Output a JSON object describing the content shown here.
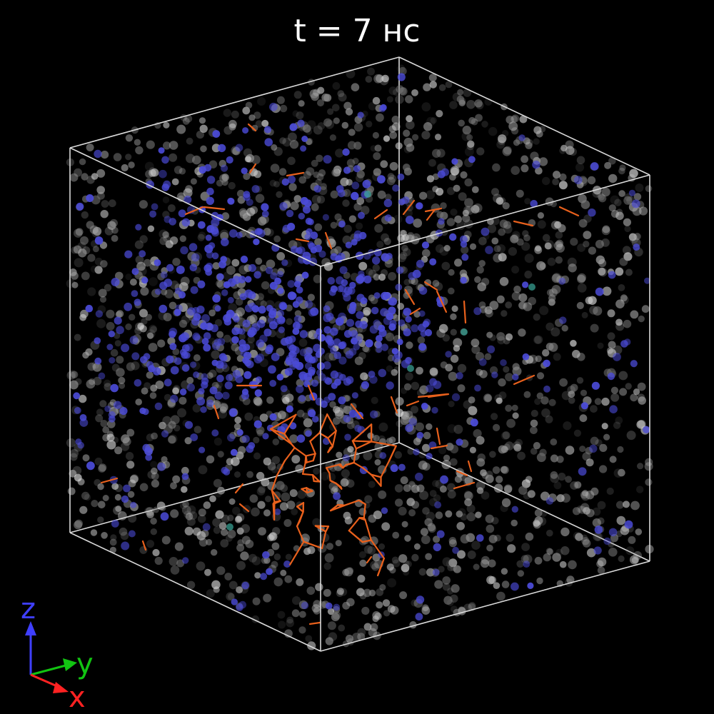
{
  "title": "t = 7 нс",
  "axes": {
    "x_label": "x",
    "y_label": "y",
    "z_label": "z"
  },
  "colors": {
    "background": "#000000",
    "box_edges": "#d9d9d9",
    "gray_atoms": "#9a9a9a",
    "blue_atoms": "#4b4bd8",
    "teal_atoms": "#3aa89a",
    "bonds": "#e8601c",
    "axis_x": "#ff2222",
    "axis_y": "#12c412",
    "axis_z": "#3f3fff"
  }
}
